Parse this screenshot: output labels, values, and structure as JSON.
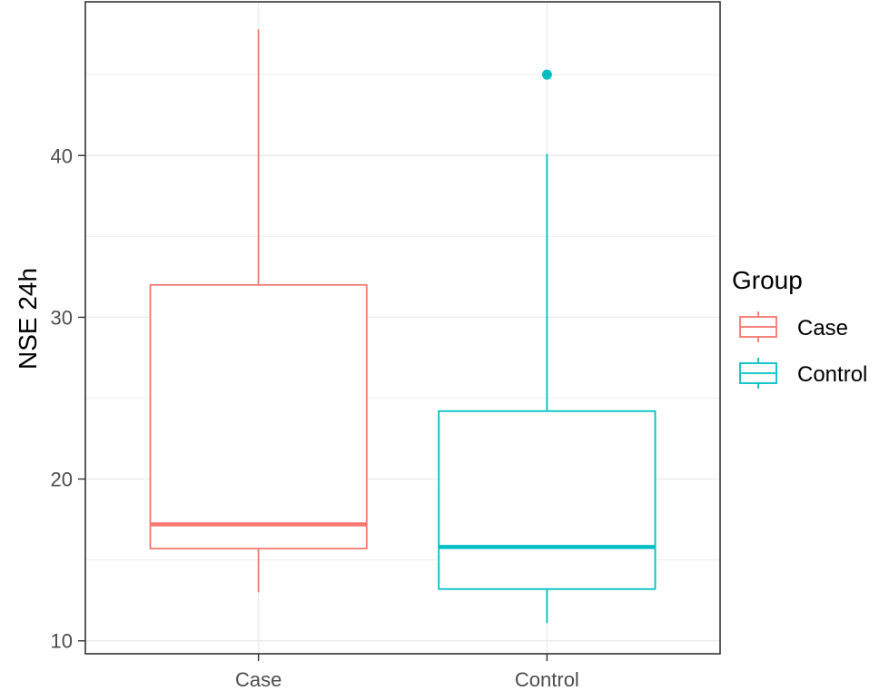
{
  "chart_data": {
    "type": "boxplot",
    "title": "",
    "xlabel": "",
    "ylabel": "NSE 24h",
    "ylim": [
      9.2,
      49.5
    ],
    "yticks": [
      10,
      20,
      30,
      40
    ],
    "grid": true,
    "categories": [
      "Case",
      "Control"
    ],
    "legend": {
      "title": "Group",
      "position": "right",
      "entries": [
        "Case",
        "Control"
      ]
    },
    "series": [
      {
        "name": "Case",
        "color": "#F8766D",
        "min": 13.0,
        "q1": 15.7,
        "median": 17.2,
        "q3": 32.0,
        "max": 47.8,
        "outliers": []
      },
      {
        "name": "Control",
        "color": "#00BFC4",
        "min": 11.1,
        "q1": 13.2,
        "median": 15.8,
        "q3": 24.2,
        "max": 40.1,
        "outliers": [
          45.0
        ]
      }
    ]
  }
}
